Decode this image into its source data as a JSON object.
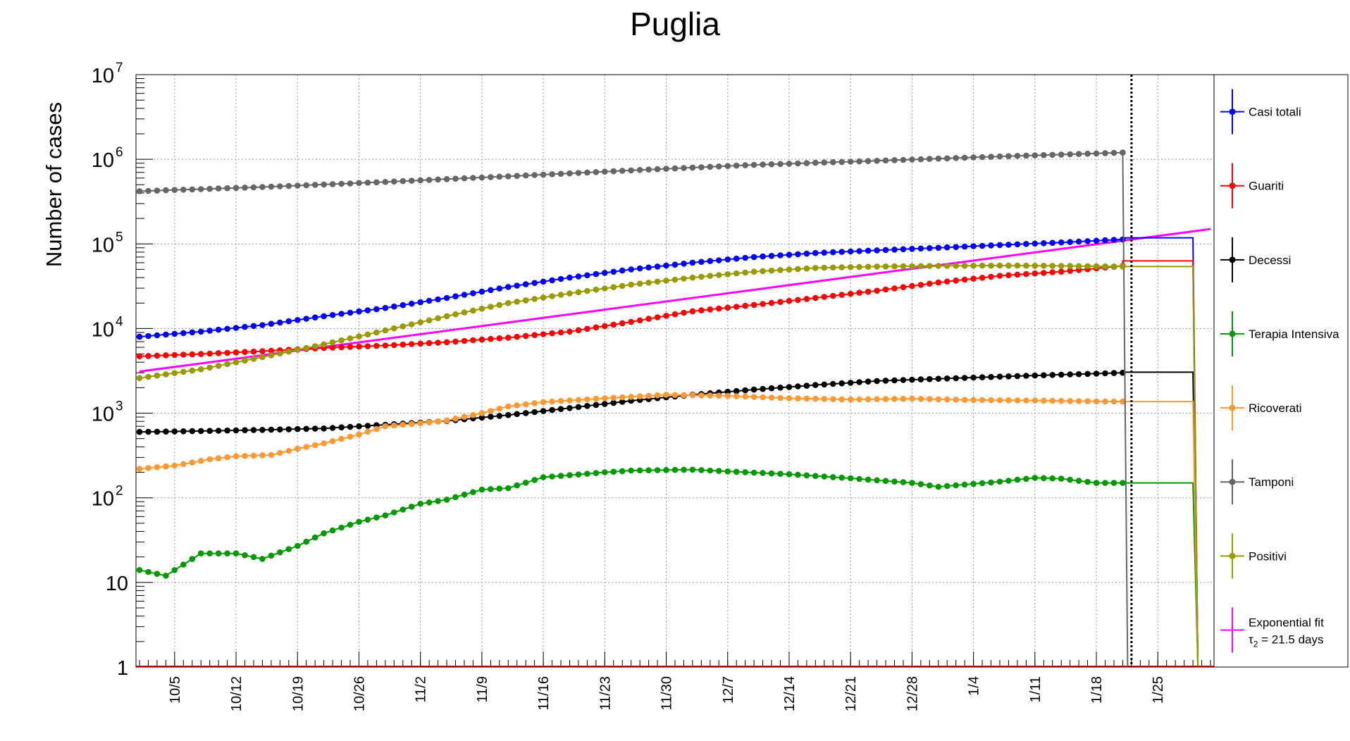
{
  "chart_data": {
    "type": "line",
    "title": "Puglia",
    "ylabel": "Number of cases",
    "xlabel": "",
    "yscale": "log",
    "ylim": [
      1,
      10000000
    ],
    "ytick_labels": [
      {
        "value": 1,
        "base": "1",
        "exp": ""
      },
      {
        "value": 10,
        "base": "10",
        "exp": ""
      },
      {
        "value": 100,
        "base": "10",
        "exp": "2"
      },
      {
        "value": 1000,
        "base": "10",
        "exp": "3"
      },
      {
        "value": 10000,
        "base": "10",
        "exp": "4"
      },
      {
        "value": 100000,
        "base": "10",
        "exp": "5"
      },
      {
        "value": 1000000,
        "base": "10",
        "exp": "6"
      },
      {
        "value": 10000000,
        "base": "10",
        "exp": "7"
      }
    ],
    "x_range_dates": [
      "2020-10-01",
      "2021-01-31"
    ],
    "xticks": [
      {
        "date": "2020-10-05",
        "label": "10/5"
      },
      {
        "date": "2020-10-12",
        "label": "10/12"
      },
      {
        "date": "2020-10-19",
        "label": "10/19"
      },
      {
        "date": "2020-10-26",
        "label": "10/26"
      },
      {
        "date": "2020-11-02",
        "label": "11/2"
      },
      {
        "date": "2020-11-09",
        "label": "11/9"
      },
      {
        "date": "2020-11-16",
        "label": "11/16"
      },
      {
        "date": "2020-11-23",
        "label": "11/23"
      },
      {
        "date": "2020-11-30",
        "label": "11/30"
      },
      {
        "date": "2020-12-07",
        "label": "12/7"
      },
      {
        "date": "2020-12-14",
        "label": "12/14"
      },
      {
        "date": "2020-12-21",
        "label": "12/21"
      },
      {
        "date": "2020-12-28",
        "label": "12/28"
      },
      {
        "date": "2021-01-04",
        "label": "1/4"
      },
      {
        "date": "2021-01-11",
        "label": "1/11"
      },
      {
        "date": "2021-01-18",
        "label": "1/18"
      },
      {
        "date": "2021-01-25",
        "label": "1/25"
      }
    ],
    "vertical_marker_date": "2021-01-22",
    "grid": true,
    "legend_position": "right",
    "series": [
      {
        "name": "Casi totali",
        "color": "#0000ff",
        "points": [
          [
            "2020-10-01",
            8000
          ],
          [
            "2020-10-08",
            9200
          ],
          [
            "2020-10-15",
            11000
          ],
          [
            "2020-10-22",
            14000
          ],
          [
            "2020-10-29",
            17500
          ],
          [
            "2020-11-05",
            23000
          ],
          [
            "2020-11-12",
            31000
          ],
          [
            "2020-11-19",
            40000
          ],
          [
            "2020-11-26",
            50000
          ],
          [
            "2020-12-03",
            60000
          ],
          [
            "2020-12-10",
            70000
          ],
          [
            "2020-12-17",
            78000
          ],
          [
            "2020-12-24",
            84000
          ],
          [
            "2020-12-31",
            90000
          ],
          [
            "2021-01-07",
            97000
          ],
          [
            "2021-01-14",
            104000
          ],
          [
            "2021-01-21",
            113000
          ]
        ],
        "flat_to_date": "2021-01-29",
        "flat_value": 118000
      },
      {
        "name": "Guariti",
        "color": "#ff0000",
        "points": [
          [
            "2020-10-01",
            4700
          ],
          [
            "2020-10-08",
            5000
          ],
          [
            "2020-10-15",
            5400
          ],
          [
            "2020-10-22",
            5900
          ],
          [
            "2020-10-29",
            6300
          ],
          [
            "2020-11-05",
            6900
          ],
          [
            "2020-11-12",
            7800
          ],
          [
            "2020-11-19",
            9200
          ],
          [
            "2020-11-26",
            12000
          ],
          [
            "2020-12-03",
            16000
          ],
          [
            "2020-12-10",
            19000
          ],
          [
            "2020-12-17",
            23000
          ],
          [
            "2020-12-24",
            28000
          ],
          [
            "2020-12-31",
            35000
          ],
          [
            "2021-01-07",
            42000
          ],
          [
            "2021-01-14",
            47000
          ],
          [
            "2021-01-21",
            55000
          ]
        ],
        "flat_to_date": "2021-01-29",
        "flat_value": 63000
      },
      {
        "name": "Decessi",
        "color": "#000000",
        "points": [
          [
            "2020-10-01",
            600
          ],
          [
            "2020-10-08",
            615
          ],
          [
            "2020-10-15",
            635
          ],
          [
            "2020-10-22",
            660
          ],
          [
            "2020-10-29",
            730
          ],
          [
            "2020-11-05",
            810
          ],
          [
            "2020-11-12",
            950
          ],
          [
            "2020-11-19",
            1150
          ],
          [
            "2020-11-26",
            1400
          ],
          [
            "2020-12-03",
            1650
          ],
          [
            "2020-12-10",
            1900
          ],
          [
            "2020-12-17",
            2150
          ],
          [
            "2020-12-24",
            2400
          ],
          [
            "2020-12-31",
            2550
          ],
          [
            "2021-01-07",
            2700
          ],
          [
            "2021-01-14",
            2850
          ],
          [
            "2021-01-21",
            3000
          ]
        ],
        "flat_to_date": "2021-01-29",
        "flat_value": 3050
      },
      {
        "name": "Terapia Intensiva",
        "color": "#009900",
        "points": [
          [
            "2020-10-01",
            14
          ],
          [
            "2020-10-04",
            12
          ],
          [
            "2020-10-08",
            22
          ],
          [
            "2020-10-12",
            22
          ],
          [
            "2020-10-15",
            19
          ],
          [
            "2020-10-19",
            27
          ],
          [
            "2020-10-22",
            38
          ],
          [
            "2020-10-26",
            52
          ],
          [
            "2020-10-29",
            62
          ],
          [
            "2020-11-02",
            85
          ],
          [
            "2020-11-05",
            95
          ],
          [
            "2020-11-09",
            125
          ],
          [
            "2020-11-12",
            130
          ],
          [
            "2020-11-16",
            175
          ],
          [
            "2020-11-19",
            185
          ],
          [
            "2020-11-23",
            200
          ],
          [
            "2020-11-26",
            210
          ],
          [
            "2020-12-03",
            215
          ],
          [
            "2020-12-07",
            205
          ],
          [
            "2020-12-14",
            190
          ],
          [
            "2020-12-21",
            170
          ],
          [
            "2020-12-28",
            150
          ],
          [
            "2020-12-31",
            135
          ],
          [
            "2021-01-07",
            155
          ],
          [
            "2021-01-11",
            172
          ],
          [
            "2021-01-14",
            168
          ],
          [
            "2021-01-18",
            150
          ],
          [
            "2021-01-21",
            150
          ]
        ],
        "flat_to_date": "2021-01-29",
        "flat_value": 150
      },
      {
        "name": "Ricoverati",
        "color": "#ff9933",
        "points": [
          [
            "2020-10-01",
            220
          ],
          [
            "2020-10-05",
            240
          ],
          [
            "2020-10-09",
            285
          ],
          [
            "2020-10-12",
            310
          ],
          [
            "2020-10-16",
            320
          ],
          [
            "2020-10-19",
            380
          ],
          [
            "2020-10-22",
            440
          ],
          [
            "2020-10-26",
            560
          ],
          [
            "2020-10-29",
            700
          ],
          [
            "2020-11-02",
            760
          ],
          [
            "2020-11-05",
            820
          ],
          [
            "2020-11-09",
            1000
          ],
          [
            "2020-11-12",
            1200
          ],
          [
            "2020-11-16",
            1350
          ],
          [
            "2020-11-23",
            1500
          ],
          [
            "2020-11-30",
            1650
          ],
          [
            "2020-12-07",
            1600
          ],
          [
            "2020-12-14",
            1500
          ],
          [
            "2020-12-21",
            1450
          ],
          [
            "2020-12-28",
            1480
          ],
          [
            "2021-01-04",
            1430
          ],
          [
            "2021-01-11",
            1410
          ],
          [
            "2021-01-18",
            1380
          ],
          [
            "2021-01-21",
            1370
          ]
        ],
        "flat_to_date": "2021-01-29",
        "flat_value": 1370
      },
      {
        "name": "Tamponi",
        "color": "#666666",
        "points": [
          [
            "2020-10-01",
            420000
          ],
          [
            "2020-10-15",
            470000
          ],
          [
            "2020-10-29",
            540000
          ],
          [
            "2020-11-12",
            630000
          ],
          [
            "2020-11-26",
            740000
          ],
          [
            "2020-12-10",
            860000
          ],
          [
            "2020-12-24",
            960000
          ],
          [
            "2021-01-07",
            1080000
          ],
          [
            "2021-01-21",
            1200000
          ]
        ],
        "flat_to_date": "2021-01-21",
        "flat_value": 1200000
      },
      {
        "name": "Positivi",
        "color": "#999900",
        "points": [
          [
            "2020-10-01",
            2600
          ],
          [
            "2020-10-08",
            3300
          ],
          [
            "2020-10-15",
            4600
          ],
          [
            "2020-10-22",
            6500
          ],
          [
            "2020-10-29",
            9500
          ],
          [
            "2020-11-05",
            14000
          ],
          [
            "2020-11-12",
            20000
          ],
          [
            "2020-11-19",
            26000
          ],
          [
            "2020-11-26",
            33000
          ],
          [
            "2020-12-03",
            40000
          ],
          [
            "2020-12-10",
            47000
          ],
          [
            "2020-12-17",
            52000
          ],
          [
            "2020-12-24",
            54000
          ],
          [
            "2020-12-31",
            55000
          ],
          [
            "2021-01-07",
            55500
          ],
          [
            "2021-01-14",
            55000
          ],
          [
            "2021-01-21",
            54000
          ]
        ],
        "flat_to_date": "2021-01-29",
        "flat_value": 54000
      }
    ],
    "fit": {
      "label_line1": "Exponential fit",
      "label_line2_symbol": "τ",
      "label_line2_sub": "2",
      "label_line2_rest": " = 21.5 days",
      "color": "#ff00ff",
      "start": [
        "2020-10-01",
        3100
      ],
      "end": [
        "2021-01-31",
        150000
      ]
    }
  }
}
